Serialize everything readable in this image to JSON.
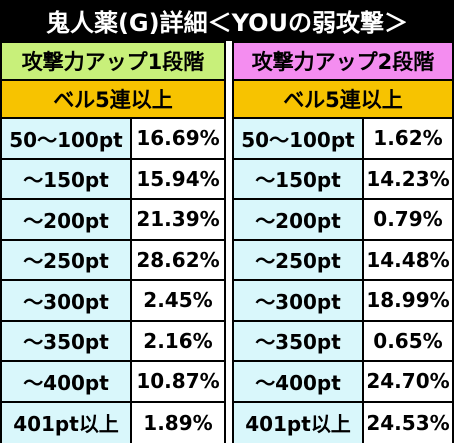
{
  "title": "鬼人薬(G)詳細＜YOUの弱攻撃＞",
  "tables": [
    {
      "header": "攻撃力アップ1段階",
      "subheader": "ベル5連以上",
      "rows": [
        {
          "label": "50〜100pt",
          "value": "16.69%"
        },
        {
          "label": "〜150pt",
          "value": "15.94%"
        },
        {
          "label": "〜200pt",
          "value": "21.39%"
        },
        {
          "label": "〜250pt",
          "value": "28.62%"
        },
        {
          "label": "〜300pt",
          "value": "2.45%"
        },
        {
          "label": "〜350pt",
          "value": "2.16%"
        },
        {
          "label": "〜400pt",
          "value": "10.87%"
        },
        {
          "label": "401pt以上",
          "value": "1.89%"
        }
      ]
    },
    {
      "header": "攻撃力アップ2段階",
      "subheader": "ベル5連以上",
      "rows": [
        {
          "label": "50〜100pt",
          "value": "1.62%"
        },
        {
          "label": "〜150pt",
          "value": "14.23%"
        },
        {
          "label": "〜200pt",
          "value": "0.79%"
        },
        {
          "label": "〜250pt",
          "value": "14.48%"
        },
        {
          "label": "〜300pt",
          "value": "18.99%"
        },
        {
          "label": "〜350pt",
          "value": "0.65%"
        },
        {
          "label": "〜400pt",
          "value": "24.70%"
        },
        {
          "label": "401pt以上",
          "value": "24.53%"
        }
      ]
    }
  ],
  "colors": {
    "title_bg": "#000000",
    "header_left": "#c8f07a",
    "header_right": "#f48df0",
    "subheader": "#f7c300",
    "label_cell": "#d9f7fb"
  }
}
